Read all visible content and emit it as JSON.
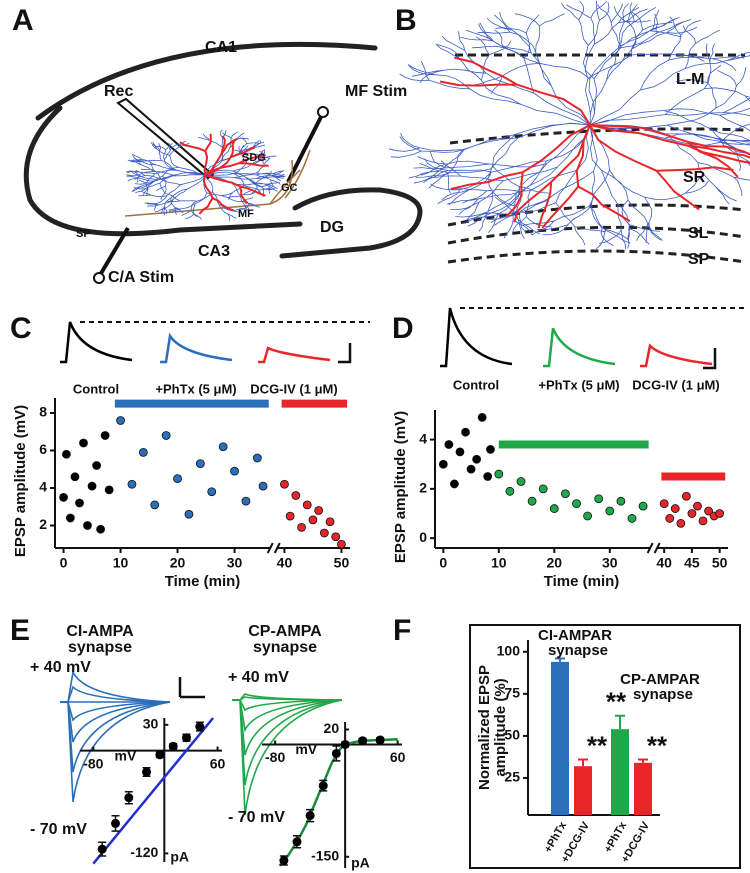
{
  "panels": {
    "labels": [
      "A",
      "B",
      "C",
      "D",
      "E",
      "F"
    ],
    "A": {
      "ca1": "CA1",
      "rec": "Rec",
      "mf_stim": "MF Stim",
      "sdg": "SDG",
      "gc": "GC",
      "mf": "MF",
      "sp": "SP",
      "ca3": "CA3",
      "dg": "DG",
      "ca_stim": "C/A Stim"
    },
    "B": {
      "lm": "L-M",
      "sr": "SR",
      "sl": "SL",
      "sp": "SP"
    },
    "E": {
      "left_title": [
        "CI-AMPA",
        "synapse"
      ],
      "right_title": [
        "CP-AMPA",
        "synapse"
      ],
      "left_plus": "+ 40 mV",
      "left_minus": "- 70 mV",
      "right_plus": "+ 40 mV",
      "right_minus": "- 70 mV"
    }
  },
  "chart_data": [
    {
      "type": "scatter",
      "ylabel": "EPSP amplitude (mV)",
      "xlabel": "Time (min)",
      "xlim": [
        -1.5,
        51.5
      ],
      "axis_break": [
        36,
        39
      ],
      "xticks": [
        0,
        10,
        20,
        30,
        40,
        50
      ],
      "ylim": [
        0.8,
        8.8
      ],
      "yticks": [
        2,
        4,
        6,
        8
      ],
      "traces": [
        {
          "label": "Control",
          "color": "#000000"
        },
        {
          "label": "+PhTx (5 μM)",
          "color": "#2a6fba"
        },
        {
          "label": "DCG-IV (1 μM)",
          "color": "#e8262a"
        }
      ],
      "drug_bars": [
        {
          "color": "#2a6fba",
          "range": [
            9,
            36
          ],
          "level": 8.5
        },
        {
          "color": "#e8262a",
          "range": [
            39.5,
            51
          ],
          "level": 8.5
        }
      ],
      "series": [
        {
          "color": "#000000",
          "x": [
            0,
            0.5,
            1.2,
            2,
            2.8,
            3.5,
            4.2,
            5,
            5.8,
            6.5,
            7.3,
            8
          ],
          "values": [
            3.5,
            5.8,
            2.4,
            4.6,
            3.2,
            6.4,
            2.0,
            4.1,
            5.2,
            1.8,
            6.8,
            3.9
          ]
        },
        {
          "color": "#2a6fba",
          "x": [
            10,
            12,
            14,
            16,
            18,
            20,
            22,
            24,
            26,
            28,
            30,
            32,
            34,
            35
          ],
          "values": [
            7.6,
            4.2,
            5.9,
            3.1,
            6.8,
            4.5,
            2.6,
            5.3,
            3.8,
            6.2,
            4.9,
            3.3,
            5.6,
            4.1
          ]
        },
        {
          "color": "#e8262a",
          "x": [
            40,
            41,
            42,
            43,
            44,
            45,
            46,
            47,
            48,
            49,
            50
          ],
          "values": [
            4.2,
            2.5,
            3.6,
            1.9,
            3.1,
            2.3,
            2.8,
            1.6,
            2.2,
            1.4,
            1.0
          ]
        }
      ]
    },
    {
      "type": "scatter",
      "ylabel": "EPSP amplitude (mV)",
      "xlabel": "Time (min)",
      "xlim": [
        -1.5,
        51.5
      ],
      "axis_break": [
        37,
        39
      ],
      "xticks": [
        0,
        10,
        20,
        30,
        40,
        45,
        50
      ],
      "ylim": [
        -0.4,
        5.2
      ],
      "yticks": [
        0,
        2,
        4
      ],
      "traces": [
        {
          "label": "Control",
          "color": "#000000"
        },
        {
          "label": "+PhTx (5 μM)",
          "color": "#1fa84a"
        },
        {
          "label": "DCG-IV (1 μM)",
          "color": "#e8262a"
        }
      ],
      "drug_bars": [
        {
          "color": "#1fa84a",
          "range": [
            10,
            37
          ],
          "level": 3.8
        },
        {
          "color": "#e8262a",
          "range": [
            39.5,
            51
          ],
          "level": 2.5
        }
      ],
      "series": [
        {
          "color": "#000000",
          "x": [
            0,
            1,
            2,
            3,
            4,
            5,
            6,
            7,
            8,
            8.5
          ],
          "values": [
            3.0,
            3.8,
            2.2,
            3.5,
            4.3,
            2.8,
            3.2,
            4.9,
            2.5,
            3.6
          ]
        },
        {
          "color": "#1fa84a",
          "x": [
            10,
            12,
            14,
            16,
            18,
            20,
            22,
            24,
            26,
            28,
            30,
            32,
            34,
            36
          ],
          "values": [
            2.6,
            1.9,
            2.3,
            1.5,
            2.0,
            1.2,
            1.8,
            1.4,
            0.9,
            1.6,
            1.1,
            1.5,
            0.8,
            1.3
          ]
        },
        {
          "color": "#e8262a",
          "x": [
            40,
            41,
            42,
            43,
            44,
            45,
            46,
            47,
            48,
            49,
            50
          ],
          "values": [
            1.4,
            0.8,
            1.2,
            0.6,
            1.7,
            1.0,
            1.3,
            0.7,
            1.1,
            0.9,
            1.0
          ]
        }
      ]
    },
    {
      "type": "iv",
      "xlabel": "mV",
      "ylabel": "pA",
      "color": "#000000",
      "xlim": [
        -95,
        65
      ],
      "xticks": [
        -80,
        60
      ],
      "ylim": [
        -130,
        38
      ],
      "yticks": [
        30,
        -120
      ],
      "x": [
        -70,
        -55,
        -40,
        -20,
        -5,
        10,
        25,
        40
      ],
      "values": [
        -115,
        -85,
        -55,
        -25,
        -5,
        5,
        15,
        28
      ],
      "errors": [
        8,
        9,
        7,
        5,
        3,
        3,
        4,
        5
      ],
      "fit": {
        "color": "#1f2fd0",
        "x": [
          -80,
          55
        ],
        "values": [
          -132,
          38
        ]
      }
    },
    {
      "type": "iv",
      "xlabel": "mV",
      "ylabel": "pA",
      "color": "#000000",
      "xlim": [
        -95,
        65
      ],
      "xticks": [
        -80,
        60
      ],
      "ylim": [
        -165,
        30
      ],
      "yticks": [
        20,
        -150
      ],
      "x": [
        -70,
        -55,
        -40,
        -25,
        -10,
        0,
        20,
        40
      ],
      "values": [
        -155,
        -130,
        -95,
        -55,
        -12,
        0,
        5,
        6
      ],
      "errors": [
        6,
        8,
        8,
        7,
        10,
        3,
        3,
        3
      ],
      "fit": {
        "color": "#1a8a3a",
        "x": [
          -75,
          -65,
          -55,
          -45,
          -35,
          -25,
          -15,
          -5,
          0,
          10,
          20,
          40,
          60
        ],
        "values": [
          -162,
          -148,
          -130,
          -108,
          -80,
          -52,
          -24,
          -5,
          0,
          3,
          5,
          6,
          7
        ]
      }
    },
    {
      "type": "bar",
      "ylabel": [
        "Normalized EPSP",
        "amplitude (%)"
      ],
      "categories": [
        "+PhTx",
        "+DCG-IV",
        "+PhTx",
        "+DCG-IV"
      ],
      "values": [
        94,
        32,
        54,
        34
      ],
      "errors": [
        2,
        4,
        8,
        2
      ],
      "colors": [
        "#2a6fba",
        "#e8262a",
        "#1fa84a",
        "#e8262a"
      ],
      "significance": [
        null,
        "**",
        "**",
        "**"
      ],
      "groups": [
        [
          "CI-AMPAR",
          "synapse"
        ],
        [
          "CP-AMPAR",
          "synapse"
        ]
      ],
      "ylim": [
        3,
        107
      ],
      "yticks": [
        25,
        50,
        75,
        100
      ]
    }
  ]
}
